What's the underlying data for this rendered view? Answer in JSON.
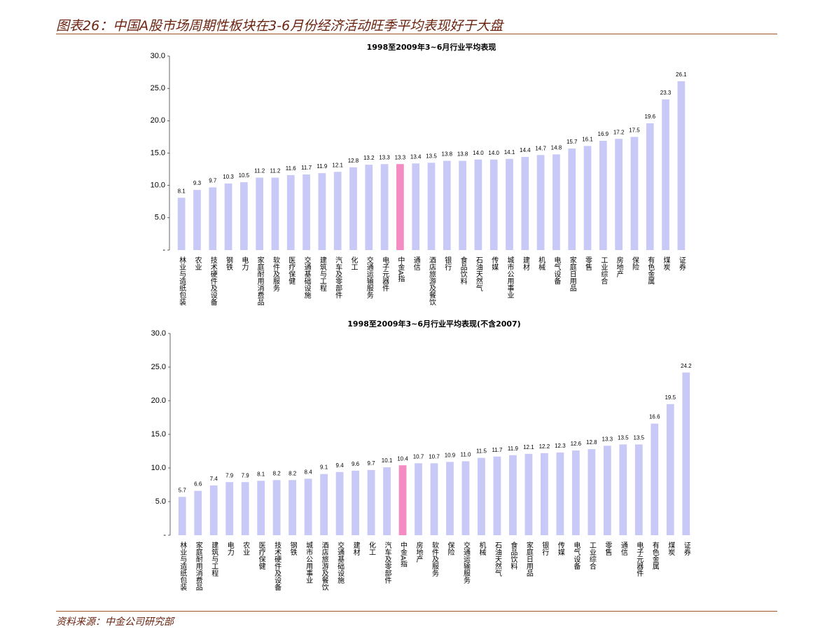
{
  "header": {
    "title": "图表26：中国A股市场周期性板块在3-6月份经济活动旺季平均表现好于大盘"
  },
  "footer": {
    "source": "资料来源：中金公司研究部"
  },
  "chart_data": [
    {
      "type": "bar",
      "title": "1998至2009年3~6月行业平均表现",
      "categories": [
        "林业与造纸包装",
        "农业",
        "技术硬件及设备",
        "钢铁",
        "电力",
        "家庭耐用消费品",
        "软件及服务",
        "医疗保健",
        "交通基础设施",
        "建筑与工程",
        "汽车及零部件",
        "化工",
        "交通运输服务",
        "电子元器件",
        "中金A指",
        "通信",
        "酒店旅游及餐饮",
        "银行",
        "食品饮料",
        "石油天然气",
        "传媒",
        "城市公用事业",
        "建材",
        "机械",
        "电气设备",
        "家庭日用品",
        "零售",
        "工业综合",
        "房地产",
        "保险",
        "有色金属",
        "煤炭",
        "证券"
      ],
      "values": [
        8.1,
        9.3,
        9.7,
        10.3,
        10.5,
        11.2,
        11.2,
        11.6,
        11.7,
        11.9,
        12.1,
        12.8,
        13.2,
        13.3,
        13.3,
        13.4,
        13.5,
        13.8,
        13.8,
        14.0,
        14.0,
        14.1,
        14.4,
        14.7,
        14.8,
        15.7,
        16.1,
        16.9,
        17.2,
        17.5,
        19.6,
        23.3,
        26.1
      ],
      "value_labels": [
        "8.1",
        "9.3",
        "9.7",
        "10.3",
        "10.5",
        "11.2",
        "11.2",
        "11.6",
        "11.7",
        "11.9",
        "12.1",
        "12.8",
        "13.2",
        "13.3",
        "13.3",
        "13.4",
        "13.5",
        "13.8",
        "13.8",
        "14.0",
        "14.0",
        "14.1",
        "14.4",
        "14.7",
        "14.8",
        "15.7",
        "16.1",
        "16.9",
        "17.2",
        "17.5",
        "19.6",
        "23.3",
        "26.1"
      ],
      "colors": [
        "#c9c9f7",
        "#c9c9f7",
        "#c9c9f7",
        "#c9c9f7",
        "#c9c9f7",
        "#c9c9f7",
        "#c9c9f7",
        "#c9c9f7",
        "#c9c9f7",
        "#c9c9f7",
        "#c9c9f7",
        "#c9c9f7",
        "#c9c9f7",
        "#c9c9f7",
        "#f48bc3",
        "#c9c9f7",
        "#c9c9f7",
        "#c9c9f7",
        "#c9c9f7",
        "#c9c9f7",
        "#c9c9f7",
        "#c9c9f7",
        "#c9c9f7",
        "#c9c9f7",
        "#c9c9f7",
        "#c9c9f7",
        "#c9c9f7",
        "#c9c9f7",
        "#c9c9f7",
        "#c9c9f7",
        "#c9c9f7",
        "#c9c9f7",
        "#c9c9f7"
      ],
      "ylim": [
        0,
        30
      ],
      "yticks": [
        {
          "value": 0,
          "label": "-"
        },
        {
          "value": 5,
          "label": "5.0"
        },
        {
          "value": 10,
          "label": "10.0"
        },
        {
          "value": 15,
          "label": "15.0"
        },
        {
          "value": 20,
          "label": "20.0"
        },
        {
          "value": 25,
          "label": "25.0"
        },
        {
          "value": 30,
          "label": "30.0"
        }
      ]
    },
    {
      "type": "bar",
      "title": "1998至2009年3~6月行业平均表现(不含2007)",
      "categories": [
        "林业与造纸包装",
        "家庭耐用消费品",
        "建筑与工程",
        "电力",
        "农业",
        "医疗保健",
        "技术硬件及设备",
        "钢铁",
        "城市公用事业",
        "酒店旅游及餐饮",
        "交通基础设施",
        "建材",
        "化工",
        "汽车及零部件",
        "中金A指",
        "房地产",
        "软件及服务",
        "保险",
        "交通运输服务",
        "机械",
        "石油天然气",
        "食品饮料",
        "家庭日用品",
        "银行",
        "传媒",
        "电气设备",
        "工业综合",
        "零售",
        "通信",
        "电子元器件",
        "有色金属",
        "煤炭",
        "证券"
      ],
      "values": [
        5.7,
        6.6,
        7.4,
        7.9,
        7.9,
        8.1,
        8.2,
        8.2,
        8.4,
        9.1,
        9.4,
        9.6,
        9.7,
        10.1,
        10.4,
        10.7,
        10.7,
        10.9,
        11.0,
        11.5,
        11.7,
        11.9,
        12.1,
        12.2,
        12.3,
        12.6,
        12.8,
        13.3,
        13.5,
        13.5,
        16.6,
        19.5,
        24.2
      ],
      "value_labels": [
        "5.7",
        "6.6",
        "7.4",
        "7.9",
        "7.9",
        "8.1",
        "8.2",
        "8.2",
        "8.4",
        "9.1",
        "9.4",
        "9.6",
        "9.7",
        "10.1",
        "10.4",
        "10.7",
        "10.7",
        "10.9",
        "11.0",
        "11.5",
        "11.7",
        "11.9",
        "12.1",
        "12.2",
        "12.3",
        "12.6",
        "12.8",
        "13.3",
        "13.5",
        "13.5",
        "16.6",
        "19.5",
        "24.2"
      ],
      "colors": [
        "#c9c9f7",
        "#c9c9f7",
        "#c9c9f7",
        "#c9c9f7",
        "#c9c9f7",
        "#c9c9f7",
        "#c9c9f7",
        "#c9c9f7",
        "#c9c9f7",
        "#c9c9f7",
        "#c9c9f7",
        "#c9c9f7",
        "#c9c9f7",
        "#c9c9f7",
        "#f48bc3",
        "#c9c9f7",
        "#c9c9f7",
        "#c9c9f7",
        "#c9c9f7",
        "#c9c9f7",
        "#c9c9f7",
        "#c9c9f7",
        "#c9c9f7",
        "#c9c9f7",
        "#c9c9f7",
        "#c9c9f7",
        "#c9c9f7",
        "#c9c9f7",
        "#c9c9f7",
        "#c9c9f7",
        "#c9c9f7",
        "#c9c9f7",
        "#c9c9f7"
      ],
      "ylim": [
        0,
        30
      ],
      "yticks": [
        {
          "value": 0,
          "label": "-"
        },
        {
          "value": 5,
          "label": "5.0"
        },
        {
          "value": 10,
          "label": "10.0"
        },
        {
          "value": 15,
          "label": "15.0"
        },
        {
          "value": 20,
          "label": "20.0"
        },
        {
          "value": 25,
          "label": "25.0"
        },
        {
          "value": 30,
          "label": "30.0"
        }
      ]
    }
  ]
}
